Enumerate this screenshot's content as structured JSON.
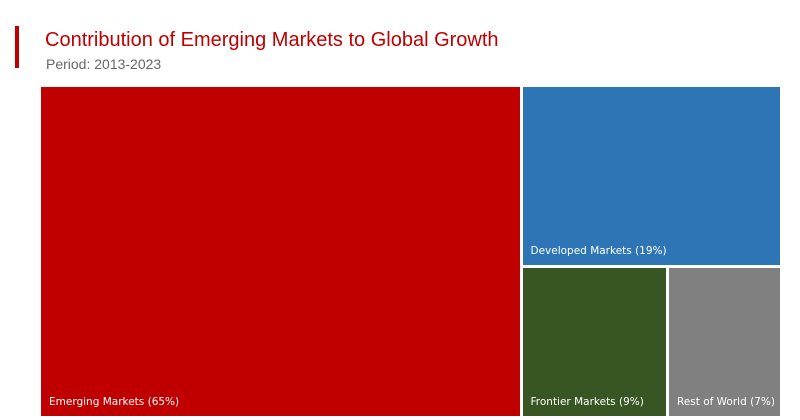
{
  "header": {
    "title": "Contribution of Emerging Markets to Global Growth",
    "subtitle": "Period: 2013-2023",
    "accent_color": "#c00000"
  },
  "chart_data": {
    "type": "treemap",
    "title": "Contribution of Emerging Markets to Global Growth",
    "subtitle": "Period: 2013-2023",
    "unit": "%",
    "items": [
      {
        "name": "Emerging Markets",
        "value": 65,
        "label": "Emerging Markets (65%)",
        "color": "#c00000"
      },
      {
        "name": "Developed Markets",
        "value": 19,
        "label": "Developed Markets (19%)",
        "color": "#2e75b6"
      },
      {
        "name": "Frontier Markets",
        "value": 9,
        "label": "Frontier Markets (9%)",
        "color": "#375623"
      },
      {
        "name": "Rest of World",
        "value": 7,
        "label": "Rest of World (7%)",
        "color": "#808080"
      }
    ]
  }
}
